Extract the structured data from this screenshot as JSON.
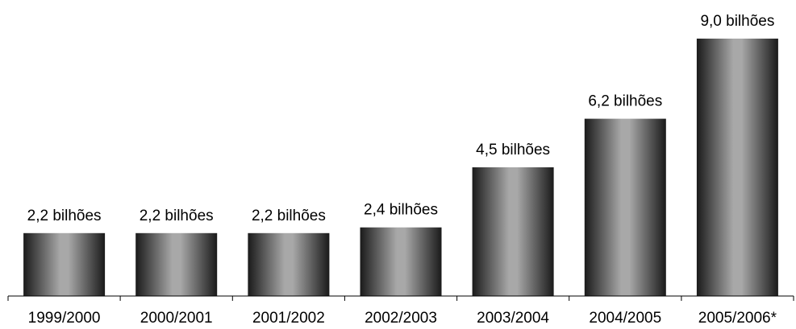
{
  "chart_data": {
    "type": "bar",
    "categories": [
      "1999/2000",
      "2000/2001",
      "2001/2002",
      "2002/2003",
      "2003/2004",
      "2004/2005",
      "2005/2006*"
    ],
    "values": [
      2.2,
      2.2,
      2.2,
      2.4,
      4.5,
      6.2,
      9.0
    ],
    "data_labels": [
      "2,2 bilhões",
      "2,2 bilhões",
      "2,2 bilhões",
      "2,4 bilhões",
      "4,5 bilhões",
      "6,2 bilhões",
      "9,0 bilhões"
    ],
    "title": "",
    "xlabel": "",
    "ylabel": "",
    "ylim": [
      0,
      9.0
    ],
    "grid": false,
    "legend": "none",
    "colors": {
      "bar_edge": "#1a1a1a",
      "bar_center": "#a8a8a8",
      "axis": "#000000"
    }
  }
}
